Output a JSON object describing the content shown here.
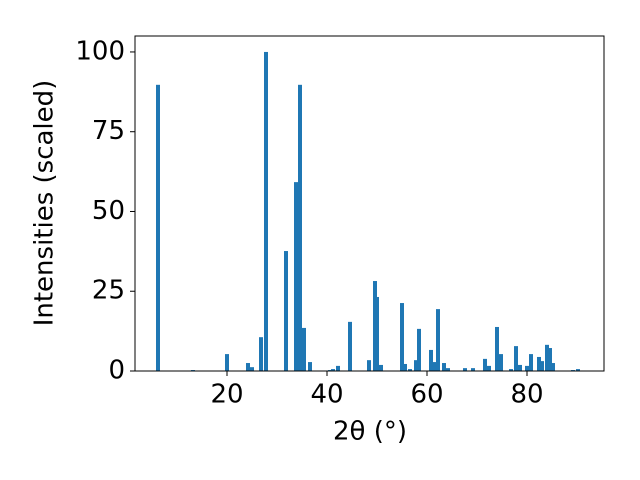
{
  "chart_data": {
    "type": "bar",
    "xlabel": "2θ (°)",
    "ylabel": "Intensities (scaled)",
    "color": "#1f77b4",
    "x": [
      6.2,
      13.2,
      20,
      24.2,
      25,
      26.8,
      27.8,
      31.8,
      33.8,
      34.6,
      35.4,
      36.6,
      40.6,
      41.2,
      42.2,
      44.6,
      48.4,
      49.6,
      50,
      50.8,
      55,
      55.6,
      56.6,
      57.8,
      58.4,
      60.8,
      61.4,
      62.2,
      63.4,
      64.2,
      67.6,
      69.2,
      71.6,
      72.4,
      74,
      74.8,
      76.8,
      77.8,
      78.6,
      80,
      80.8,
      82.4,
      83,
      84,
      84.6,
      85.2,
      89.2,
      90.2
    ],
    "values": [
      89.7,
      0.3,
      5.3,
      2.5,
      1.2,
      10.6,
      100,
      37.6,
      59.2,
      89.7,
      13.5,
      2.8,
      0.3,
      0.6,
      1.6,
      15.4,
      3.4,
      28.2,
      23.2,
      1.9,
      21.3,
      2.2,
      0.6,
      3.4,
      13.2,
      6.6,
      2.8,
      19.4,
      2.5,
      0.9,
      0.9,
      0.9,
      3.8,
      1.6,
      13.8,
      5.3,
      0.6,
      7.8,
      1.9,
      1.6,
      5.3,
      4.4,
      3.1,
      8.2,
      7.2,
      2.5,
      0.3,
      0.6
    ],
    "xlim": [
      1.6,
      95.4
    ],
    "ylim": [
      0,
      105
    ],
    "xticks": [
      20,
      40,
      60,
      80
    ],
    "yticks": [
      0,
      25,
      50,
      75,
      100
    ]
  }
}
